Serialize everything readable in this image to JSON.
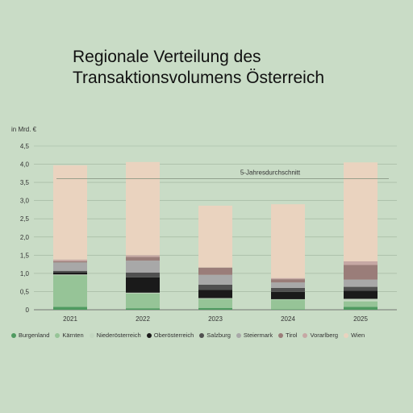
{
  "chart_data": {
    "type": "bar",
    "stacked": true,
    "title": [
      "Regionale Verteilung des",
      "Transaktionsvolumens Österreich"
    ],
    "ylabel": "in Mrd. €",
    "ylim": [
      0,
      4.5
    ],
    "yticks": [
      "0",
      "0,5",
      "1,0",
      "1,5",
      "2,0",
      "2,5",
      "3,0",
      "3,5",
      "4,0",
      "4,5"
    ],
    "categories": [
      "2021",
      "2022",
      "2023",
      "2024",
      "2025"
    ],
    "reference_line": {
      "label": "5-Jahresdurchschnitt",
      "value": 3.6
    },
    "series": [
      {
        "name": "Burgenland",
        "color": "#4f9a60",
        "values": [
          0.08,
          0.04,
          0.05,
          0.01,
          0.08
        ]
      },
      {
        "name": "Kärnten",
        "color": "#96c497",
        "values": [
          0.87,
          0.41,
          0.25,
          0.27,
          0.15
        ]
      },
      {
        "name": "Niederösterreich",
        "color": "#c2d6c0",
        "values": [
          0.02,
          0.02,
          0.02,
          0.01,
          0.07
        ]
      },
      {
        "name": "Oberösterreich",
        "color": "#1a1a1a",
        "values": [
          0.05,
          0.42,
          0.23,
          0.2,
          0.22
        ]
      },
      {
        "name": "Salzburg",
        "color": "#505050",
        "values": [
          0.05,
          0.13,
          0.14,
          0.11,
          0.11
        ]
      },
      {
        "name": "Steiermark",
        "color": "#a8a8a8",
        "values": [
          0.23,
          0.33,
          0.27,
          0.15,
          0.2
        ]
      },
      {
        "name": "Tirol",
        "color": "#9a7d79",
        "values": [
          0.03,
          0.1,
          0.2,
          0.09,
          0.4
        ]
      },
      {
        "name": "Vorarlberg",
        "color": "#c6a8a4",
        "values": [
          0.05,
          0.05,
          0.0,
          0.03,
          0.1
        ]
      },
      {
        "name": "Wien",
        "color": "#ead3bf",
        "values": [
          2.59,
          2.56,
          1.7,
          2.03,
          2.72
        ]
      }
    ],
    "grid": true,
    "legend_position": "bottom"
  }
}
